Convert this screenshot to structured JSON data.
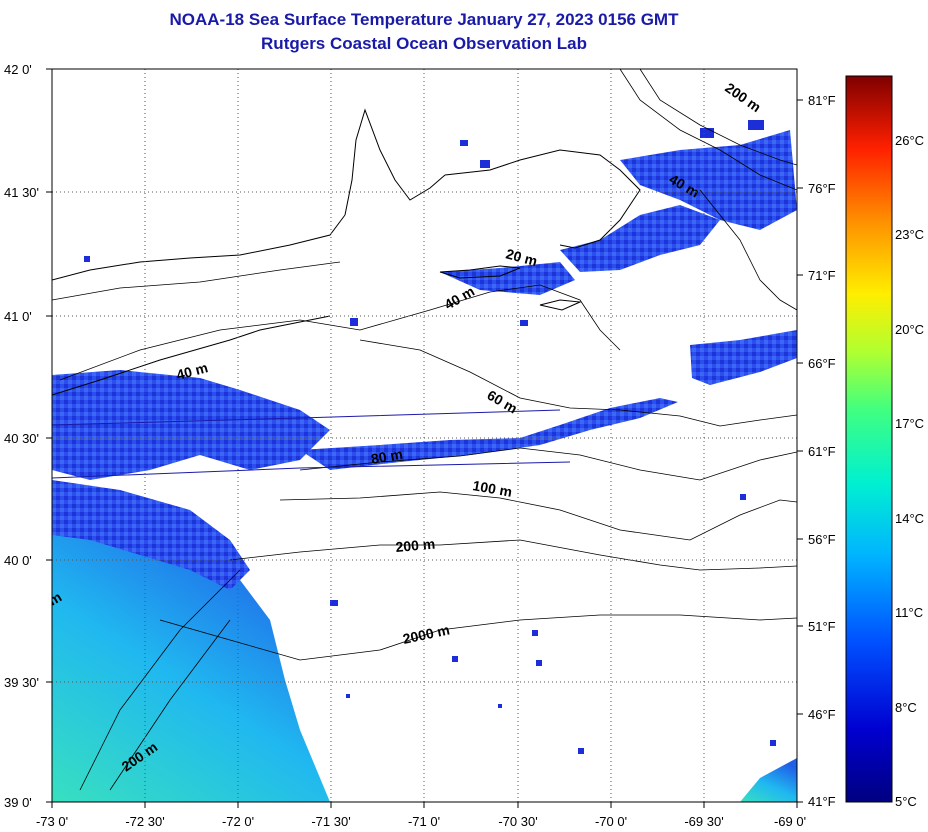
{
  "title": {
    "line1": "NOAA-18 Sea Surface Temperature January 27, 2023 0156 GMT",
    "line2": "Rutgers Coastal Ocean Observation Lab"
  },
  "map": {
    "lat_labels": [
      "42 0'",
      "41 30'",
      "41 0'",
      "40 30'",
      "40 0'",
      "39 30'",
      "39 0'"
    ],
    "lon_labels": [
      "-73 0'",
      "-72 30'",
      "-72 0'",
      "-71 30'",
      "-71 0'",
      "-70 30'",
      "-70 0'",
      "-69 30'",
      "-69 0'"
    ],
    "fahrenheit_labels": [
      "81°F",
      "76°F",
      "71°F",
      "66°F",
      "61°F",
      "56°F",
      "51°F",
      "46°F",
      "41°F"
    ],
    "isobath_labels": [
      "200 m",
      "40 m",
      "20 m",
      "40 m",
      "40 m",
      "60 m",
      "80 m",
      "100 m",
      "200 m",
      "2000 m",
      "200 m",
      "m"
    ]
  },
  "colorbar": {
    "celsius_labels": [
      "26°C",
      "23°C",
      "20°C",
      "17°C",
      "14°C",
      "11°C",
      "8°C",
      "5°C"
    ],
    "colors": [
      "#7f0000",
      "#d40000",
      "#ff3c00",
      "#ff9a00",
      "#ffe600",
      "#b4ff46",
      "#46ffb4",
      "#00d4ff",
      "#0078ff",
      "#0014ff",
      "#0000b8",
      "#000080"
    ]
  }
}
